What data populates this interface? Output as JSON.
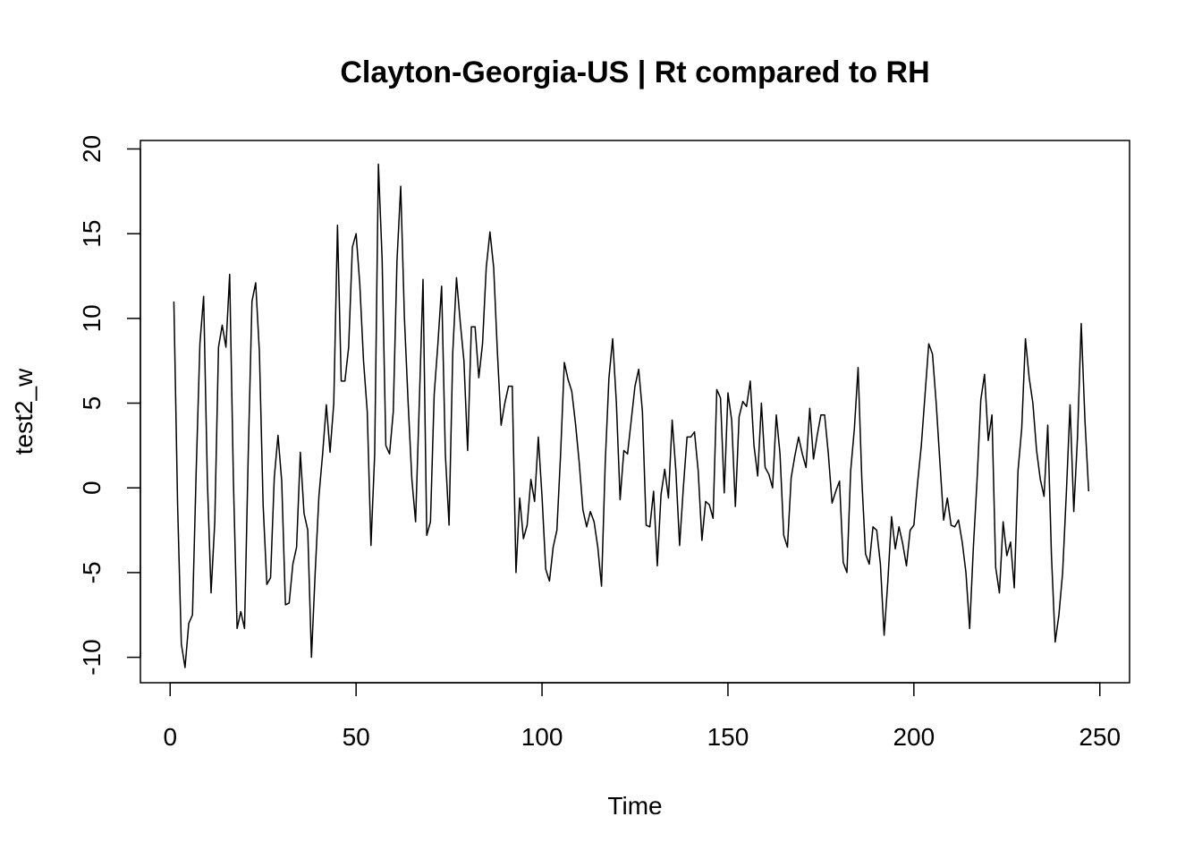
{
  "chart_data": {
    "type": "line",
    "title": "Clayton-Georgia-US | Rt compared to RH",
    "xlabel": "Time",
    "ylabel": "test2_w",
    "xlim": [
      -8,
      258
    ],
    "ylim": [
      -11.5,
      20.5
    ],
    "xticks": [
      0,
      50,
      100,
      150,
      200,
      250
    ],
    "yticks": [
      -10,
      -5,
      0,
      5,
      10,
      15,
      20
    ],
    "xtick_labels": [
      "0",
      "50",
      "100",
      "150",
      "200",
      "250"
    ],
    "ytick_labels": [
      "-10",
      "-5",
      "0",
      "5",
      "10",
      "15",
      "20"
    ],
    "grid": false,
    "series": [
      {
        "x_start": 1,
        "values": [
          11,
          -1,
          -9.2,
          -10.6,
          -8,
          -7.5,
          1,
          8.5,
          11.3,
          0.5,
          -6.2,
          -2,
          8.3,
          9.6,
          8.3,
          12.6,
          0.5,
          -8.3,
          -7.3,
          -8.3,
          2,
          11,
          12.1,
          8,
          -1,
          -5.7,
          -5.3,
          0.6,
          3.1,
          0.4,
          -6.9,
          -6.8,
          -4.5,
          -3.5,
          2.1,
          -1.5,
          -2.5,
          -10,
          -5,
          -0.5,
          2,
          4.9,
          2.1,
          5,
          15.5,
          6.3,
          6.3,
          8.3,
          14.2,
          15,
          12,
          7.5,
          4.5,
          -3.4,
          2,
          19.1,
          13.5,
          2.5,
          2,
          4.5,
          13.4,
          17.8,
          10,
          5,
          0.5,
          -2,
          5,
          12.3,
          -2.8,
          -2,
          5.5,
          8.5,
          11.9,
          2,
          -2.2,
          8,
          12.4,
          9.8,
          7.5,
          2.2,
          9.5,
          9.5,
          6.5,
          8.5,
          13,
          15.1,
          13,
          8,
          3.7,
          5,
          6,
          6,
          -5,
          -0.6,
          -3,
          -2.2,
          0.5,
          -0.8,
          3,
          -0.5,
          -4.8,
          -5.5,
          -3.5,
          -2.5,
          2,
          7.4,
          6.4,
          5.7,
          3.8,
          1.5,
          -1.3,
          -2.3,
          -1.4,
          -2,
          -3.5,
          -5.8,
          1.5,
          6.5,
          8.8,
          5,
          -0.7,
          2.2,
          2,
          4,
          6,
          7,
          4.5,
          -2.2,
          -2.3,
          -0.2,
          -4.6,
          -0.4,
          1.1,
          -0.6,
          4,
          1,
          -3.4,
          0,
          3,
          3,
          3.3,
          1,
          -3.1,
          -0.8,
          -1,
          -1.8,
          5.8,
          5.3,
          -0.3,
          5.6,
          4,
          -1.1,
          4.2,
          5.1,
          4.8,
          6.3,
          2.5,
          0.7,
          5,
          1.2,
          0.8,
          0,
          4.3,
          2,
          -2.8,
          -3.5,
          0.6,
          1.9,
          3,
          2,
          1.2,
          4.7,
          1.7,
          3.1,
          4.3,
          4.3,
          2,
          -0.9,
          -0.2,
          0.4,
          -4.4,
          -5,
          1,
          3.5,
          7.1,
          0.5,
          -3.9,
          -4.5,
          -2.3,
          -2.5,
          -4.5,
          -8.7,
          -5.5,
          -1.7,
          -3.6,
          -2.3,
          -3.3,
          -4.6,
          -2.5,
          -2.2,
          0.3,
          2.5,
          5.5,
          8.5,
          7.9,
          5,
          1.5,
          -1.9,
          -0.6,
          -2.2,
          -2.3,
          -1.9,
          -3.2,
          -5,
          -8.3,
          -3.5,
          0.5,
          5.2,
          6.7,
          2.8,
          4.3,
          -4.7,
          -6.2,
          -2,
          -4,
          -3.2,
          -5.9,
          1,
          3.5,
          8.8,
          6.5,
          5,
          2.2,
          0.5,
          -0.5,
          3.7,
          -4,
          -9.1,
          -7.5,
          -5,
          -0.3,
          4.9,
          -1.4,
          3,
          9.7,
          4,
          -0.2
        ]
      }
    ]
  }
}
